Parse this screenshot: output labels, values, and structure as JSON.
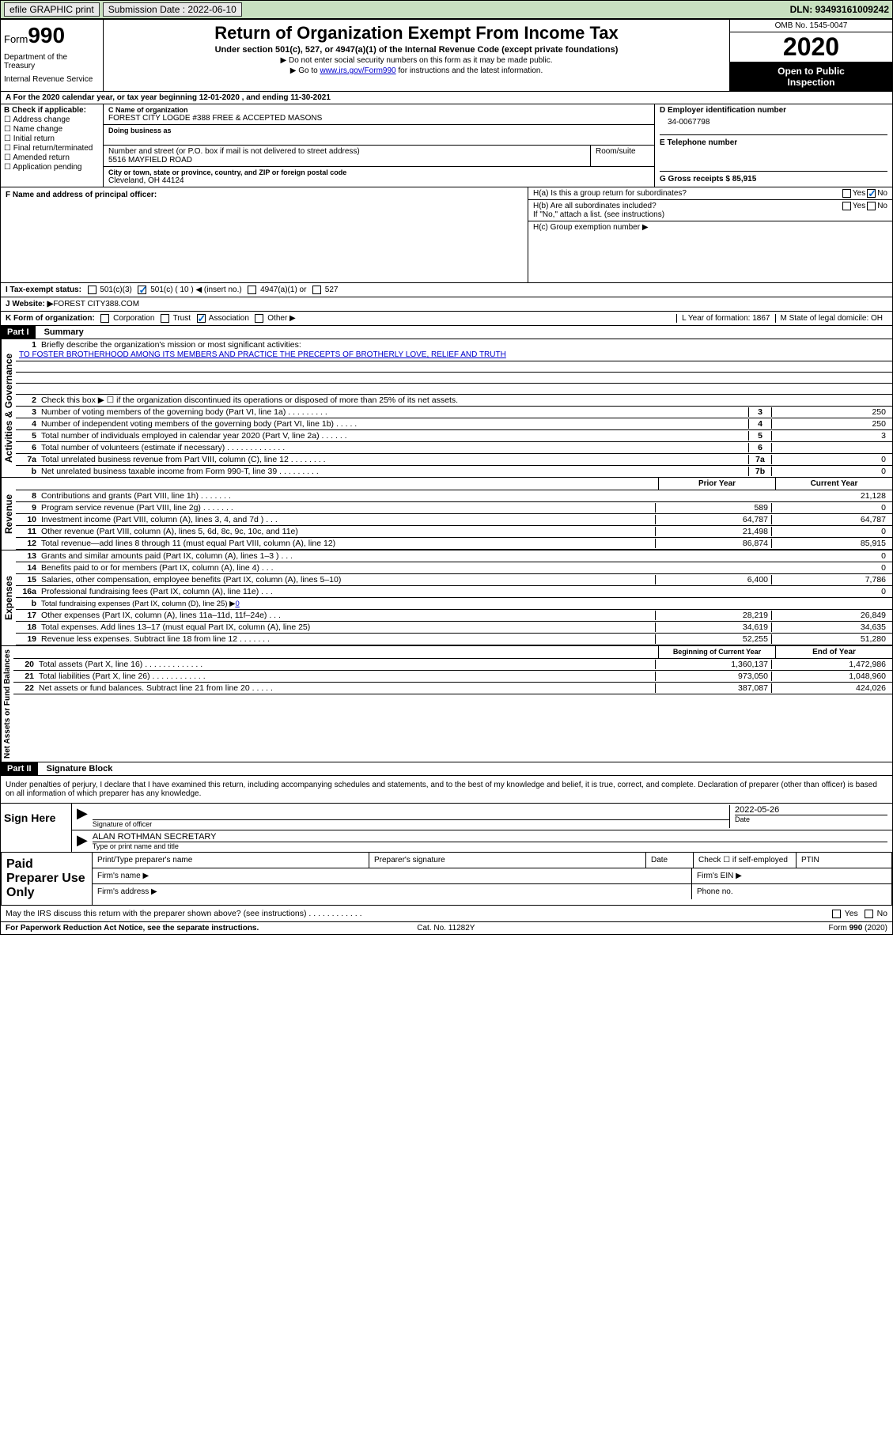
{
  "topbar": {
    "efile_label": "efile GRAPHIC print",
    "submission_label": "Submission Date : 2022-06-10",
    "dln_label": "DLN: 93493161009242"
  },
  "header": {
    "form_word": "Form",
    "form_number": "990",
    "dept1": "Department of the Treasury",
    "dept2": "Internal Revenue Service",
    "title": "Return of Organization Exempt From Income Tax",
    "subtitle": "Under section 501(c), 527, or 4947(a)(1) of the Internal Revenue Code (except private foundations)",
    "note1": "▶ Do not enter social security numbers on this form as it may be made public.",
    "note2_pre": "▶ Go to ",
    "note2_link": "www.irs.gov/Form990",
    "note2_post": " for instructions and the latest information.",
    "omb": "OMB No. 1545-0047",
    "year": "2020",
    "inspect1": "Open to Public",
    "inspect2": "Inspection"
  },
  "rowA": "A For the 2020 calendar year, or tax year beginning 12-01-2020    , and ending 11-30-2021",
  "colB": {
    "lbl": "B Check if applicable:",
    "c1": "Address change",
    "c2": "Name change",
    "c3": "Initial return",
    "c4": "Final return/terminated",
    "c5": "Amended return",
    "c6": "Application pending"
  },
  "colC": {
    "name_lbl": "C Name of organization",
    "name_val": "FOREST CITY LOGDE #388 FREE & ACCEPTED MASONS",
    "dba_lbl": "Doing business as",
    "addr_lbl": "Number and street (or P.O. box if mail is not delivered to street address)",
    "addr_val": "5516 MAYFIELD ROAD",
    "room_lbl": "Room/suite",
    "city_lbl": "City or town, state or province, country, and ZIP or foreign postal code",
    "city_val": "Cleveland, OH  44124"
  },
  "colD": {
    "ein_lbl": "D Employer identification number",
    "ein_val": "34-0067798",
    "phone_lbl": "E Telephone number",
    "gross_lbl": "G Gross receipts $ 85,915"
  },
  "secF": {
    "lbl": "F Name and address of principal officer:"
  },
  "secH": {
    "ha": "H(a)  Is this a group return for subordinates?",
    "hb": "H(b)  Are all subordinates included?",
    "hb_note": "If \"No,\" attach a list. (see instructions)",
    "hc": "H(c)  Group exemption number ▶",
    "yes": "Yes",
    "no": "No"
  },
  "rowI": {
    "lbl": "I   Tax-exempt status:",
    "c1": "501(c)(3)",
    "c2": "501(c) ( 10 ) ◀ (insert no.)",
    "c3": "4947(a)(1) or",
    "c4": "527"
  },
  "rowJ": {
    "lbl": "J   Website: ▶",
    "val": "  FOREST CITY388.COM"
  },
  "rowK": {
    "lbl": "K Form of organization:",
    "c1": "Corporation",
    "c2": "Trust",
    "c3": "Association",
    "c4": "Other ▶",
    "l_lbl": "L Year of formation: 1867",
    "m_lbl": "M State of legal domicile: OH"
  },
  "part1": {
    "hdr": "Part I",
    "title": "Summary",
    "vert1": "Activities & Governance",
    "vert2": "Revenue",
    "vert3": "Expenses",
    "vert4": "Net Assets or Fund Balances",
    "q1": "Briefly describe the organization's mission or most significant activities:",
    "mission": "TO FOSTER BROTHERHOOD AMONG ITS MEMBERS AND PRACTICE THE PRECEPTS OF BROTHERLY LOVE, RELIEF AND TRUTH",
    "q2": "Check this box ▶ ☐  if the organization discontinued its operations or disposed of more than 25% of its net assets.",
    "lines_gov": [
      {
        "n": "3",
        "t": "Number of voting members of the governing body (Part VI, line 1a)   .    .    .    .    .    .    .    .    .",
        "b": "3",
        "v": "250"
      },
      {
        "n": "4",
        "t": "Number of independent voting members of the governing body (Part VI, line 1b)    .    .    .    .    .",
        "b": "4",
        "v": "250"
      },
      {
        "n": "5",
        "t": "Total number of individuals employed in calendar year 2020 (Part V, line 2a)   .    .    .    .    .    .",
        "b": "5",
        "v": "3"
      },
      {
        "n": "6",
        "t": "Total number of volunteers (estimate if necessary)   .    .    .    .    .    .    .    .    .    .    .    .    .",
        "b": "6",
        "v": ""
      },
      {
        "n": "7a",
        "t": "Total unrelated business revenue from Part VIII, column (C), line 12   .    .    .    .    .    .    .    .",
        "b": "7a",
        "v": "0"
      },
      {
        "n": "b",
        "t": "Net unrelated business taxable income from Form 990-T, line 39   .    .    .    .    .    .    .    .    .",
        "b": "7b",
        "v": "0"
      }
    ],
    "hdr_prior": "Prior Year",
    "hdr_current": "Current Year",
    "lines_rev": [
      {
        "n": "8",
        "t": "Contributions and grants (Part VIII, line 1h)   .    .    .    .    .    .    .",
        "p": "",
        "c": "21,128"
      },
      {
        "n": "9",
        "t": "Program service revenue (Part VIII, line 2g)   .    .    .    .    .    .    .",
        "p": "589",
        "c": "0"
      },
      {
        "n": "10",
        "t": "Investment income (Part VIII, column (A), lines 3, 4, and 7d )   .    .    .",
        "p": "64,787",
        "c": "64,787"
      },
      {
        "n": "11",
        "t": "Other revenue (Part VIII, column (A), lines 5, 6d, 8c, 9c, 10c, and 11e)",
        "p": "21,498",
        "c": "0"
      },
      {
        "n": "12",
        "t": "Total revenue—add lines 8 through 11 (must equal Part VIII, column (A), line 12)",
        "p": "86,874",
        "c": "85,915"
      }
    ],
    "lines_exp": [
      {
        "n": "13",
        "t": "Grants and similar amounts paid (Part IX, column (A), lines 1–3 )   .    .    .",
        "p": "",
        "c": "0"
      },
      {
        "n": "14",
        "t": "Benefits paid to or for members (Part IX, column (A), line 4)   .    .    .",
        "p": "",
        "c": "0"
      },
      {
        "n": "15",
        "t": "Salaries, other compensation, employee benefits (Part IX, column (A), lines 5–10)",
        "p": "6,400",
        "c": "7,786"
      },
      {
        "n": "16a",
        "t": "Professional fundraising fees (Part IX, column (A), line 11e)   .    .    .",
        "p": "",
        "c": "0"
      }
    ],
    "line16b": {
      "n": "b",
      "t": "Total fundraising expenses (Part IX, column (D), line 25) ▶",
      "v": "0"
    },
    "lines_exp2": [
      {
        "n": "17",
        "t": "Other expenses (Part IX, column (A), lines 11a–11d, 11f–24e)   .    .    .",
        "p": "28,219",
        "c": "26,849"
      },
      {
        "n": "18",
        "t": "Total expenses. Add lines 13–17 (must equal Part IX, column (A), line 25)",
        "p": "34,619",
        "c": "34,635"
      },
      {
        "n": "19",
        "t": "Revenue less expenses. Subtract line 18 from line 12   .    .    .    .    .    .    .",
        "p": "52,255",
        "c": "51,280"
      }
    ],
    "hdr_begin": "Beginning of Current Year",
    "hdr_end": "End of Year",
    "lines_net": [
      {
        "n": "20",
        "t": "Total assets (Part X, line 16)   .    .    .    .    .    .    .    .    .    .    .    .    .",
        "p": "1,360,137",
        "c": "1,472,986"
      },
      {
        "n": "21",
        "t": "Total liabilities (Part X, line 26)   .    .    .    .    .    .    .    .    .    .    .    .",
        "p": "973,050",
        "c": "1,048,960"
      },
      {
        "n": "22",
        "t": "Net assets or fund balances. Subtract line 21 from line 20   .    .    .    .    .",
        "p": "387,087",
        "c": "424,026"
      }
    ]
  },
  "part2": {
    "hdr": "Part II",
    "title": "Signature Block",
    "decl": "Under penalties of perjury, I declare that I have examined this return, including accompanying schedules and statements, and to the best of my knowledge and belief, it is true, correct, and complete. Declaration of preparer (other than officer) is based on all information of which preparer has any knowledge.",
    "sign_here": "Sign Here",
    "sig_officer": "Signature of officer",
    "date_lbl": "Date",
    "date_val": "2022-05-26",
    "officer_name": "ALAN ROTHMAN  SECRETARY",
    "type_name": "Type or print name and title",
    "paid_prep": "Paid Preparer Use Only",
    "prep_name": "Print/Type preparer's name",
    "prep_sig": "Preparer's signature",
    "prep_date": "Date",
    "prep_check": "Check ☐ if self-employed",
    "ptin": "PTIN",
    "firm_name": "Firm's name    ▶",
    "firm_ein": "Firm's EIN ▶",
    "firm_addr": "Firm's address ▶",
    "phone": "Phone no.",
    "discuss": "May the IRS discuss this return with the preparer shown above? (see instructions)   .    .    .    .    .    .    .    .    .    .    .    .",
    "yes": "Yes",
    "no": "No"
  },
  "footer": {
    "left": "For Paperwork Reduction Act Notice, see the separate instructions.",
    "mid": "Cat. No. 11282Y",
    "right": "Form 990 (2020)"
  }
}
